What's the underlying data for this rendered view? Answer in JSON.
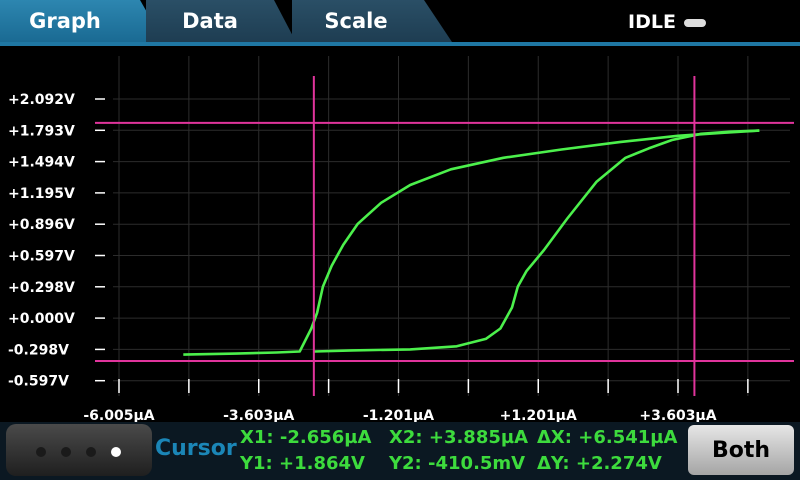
{
  "tabs": [
    {
      "label": "Graph"
    },
    {
      "label": "Data"
    },
    {
      "label": "Scale"
    }
  ],
  "status": {
    "text": "IDLE"
  },
  "chart_data": {
    "type": "line",
    "x_ticks": [
      "-6.005µA",
      "-3.603µA",
      "-1.201µA",
      "+1.201µA",
      "+3.603µA"
    ],
    "y_ticks": [
      "+2.092V",
      "+1.793V",
      "+1.494V",
      "+1.195V",
      "+0.896V",
      "+0.597V",
      "+0.298V",
      "+0.000V",
      "-0.298V",
      "-0.597V"
    ],
    "xlim": [
      -6.005,
      6.005
    ],
    "ylim": [
      -0.597,
      2.092
    ],
    "series": [
      {
        "color": "#4cf04c",
        "x": [
          -4.9,
          -4.0,
          -3.3,
          -2.9,
          -2.7,
          -2.6,
          -2.5,
          -2.35,
          -2.15,
          -1.9,
          -1.5,
          -1.0,
          -0.3,
          0.6,
          1.6,
          2.6,
          3.6,
          4.4,
          5.0
        ],
        "y": [
          -0.35,
          -0.34,
          -0.33,
          -0.32,
          -0.1,
          0.05,
          0.3,
          0.5,
          0.7,
          0.9,
          1.1,
          1.27,
          1.42,
          1.53,
          1.61,
          1.68,
          1.74,
          1.77,
          1.79
        ]
      },
      {
        "color": "#4cf04c",
        "x": [
          -2.65,
          -2.0,
          -1.0,
          -0.2,
          0.3,
          0.55,
          0.75,
          0.85,
          1.0,
          1.3,
          1.7,
          2.2,
          2.7,
          3.1,
          3.5,
          4.0,
          4.5,
          5.0
        ],
        "y": [
          -0.32,
          -0.31,
          -0.3,
          -0.27,
          -0.2,
          -0.1,
          0.1,
          0.3,
          0.45,
          0.65,
          0.95,
          1.3,
          1.53,
          1.62,
          1.7,
          1.76,
          1.78,
          1.79
        ]
      }
    ],
    "cursors": {
      "x1": -2.656,
      "x2": 3.885,
      "y1": 1.864,
      "y2": -0.4105,
      "color": "#e0349c"
    }
  },
  "cursor_panel": {
    "label": "Cursor",
    "x1": "X1: -2.656µA",
    "x2": "X2: +3.885µA",
    "dx": "ΔX: +6.541µA",
    "y1": "Y1: +1.864V",
    "y2": "Y2: -410.5mV",
    "dy": "ΔY: +2.274V"
  },
  "both_button": {
    "label": "Both"
  },
  "page_dots": {
    "count": 4,
    "active": 4
  }
}
